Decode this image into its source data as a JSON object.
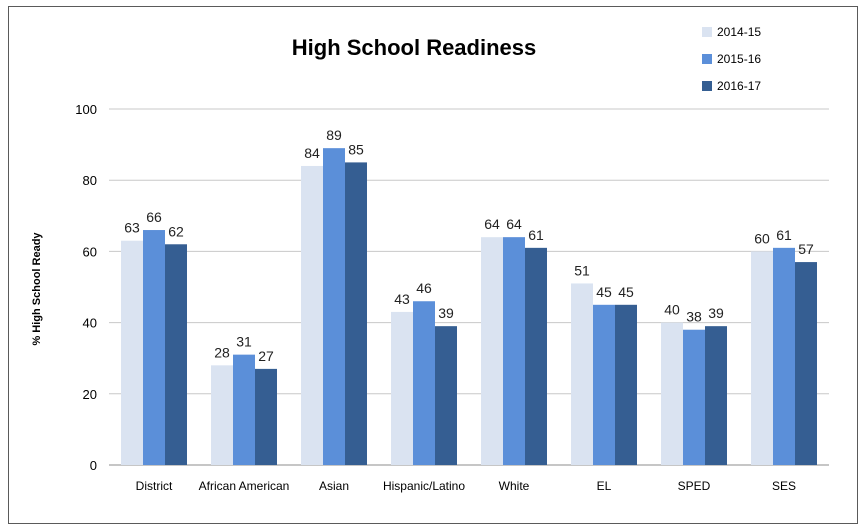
{
  "chart_data": {
    "type": "bar",
    "title": "High School Readiness",
    "xlabel": "",
    "ylabel": "% High School Ready",
    "ylim": [
      0,
      100
    ],
    "yticks": [
      0,
      20,
      40,
      60,
      80,
      100
    ],
    "grid": true,
    "legend_position": "top-right",
    "categories": [
      "District",
      "African American",
      "Asian",
      "Hispanic/Latino",
      "White",
      "EL",
      "SPED",
      "SES"
    ],
    "series": [
      {
        "name": "2014-15",
        "color": "#dae3f1",
        "values": [
          63,
          28,
          84,
          43,
          64,
          51,
          40,
          60
        ]
      },
      {
        "name": "2015-16",
        "color": "#5b8fd9",
        "values": [
          66,
          31,
          89,
          46,
          64,
          45,
          38,
          61
        ]
      },
      {
        "name": "2016-17",
        "color": "#355e92",
        "values": [
          62,
          27,
          85,
          39,
          61,
          45,
          39,
          57
        ]
      }
    ]
  }
}
